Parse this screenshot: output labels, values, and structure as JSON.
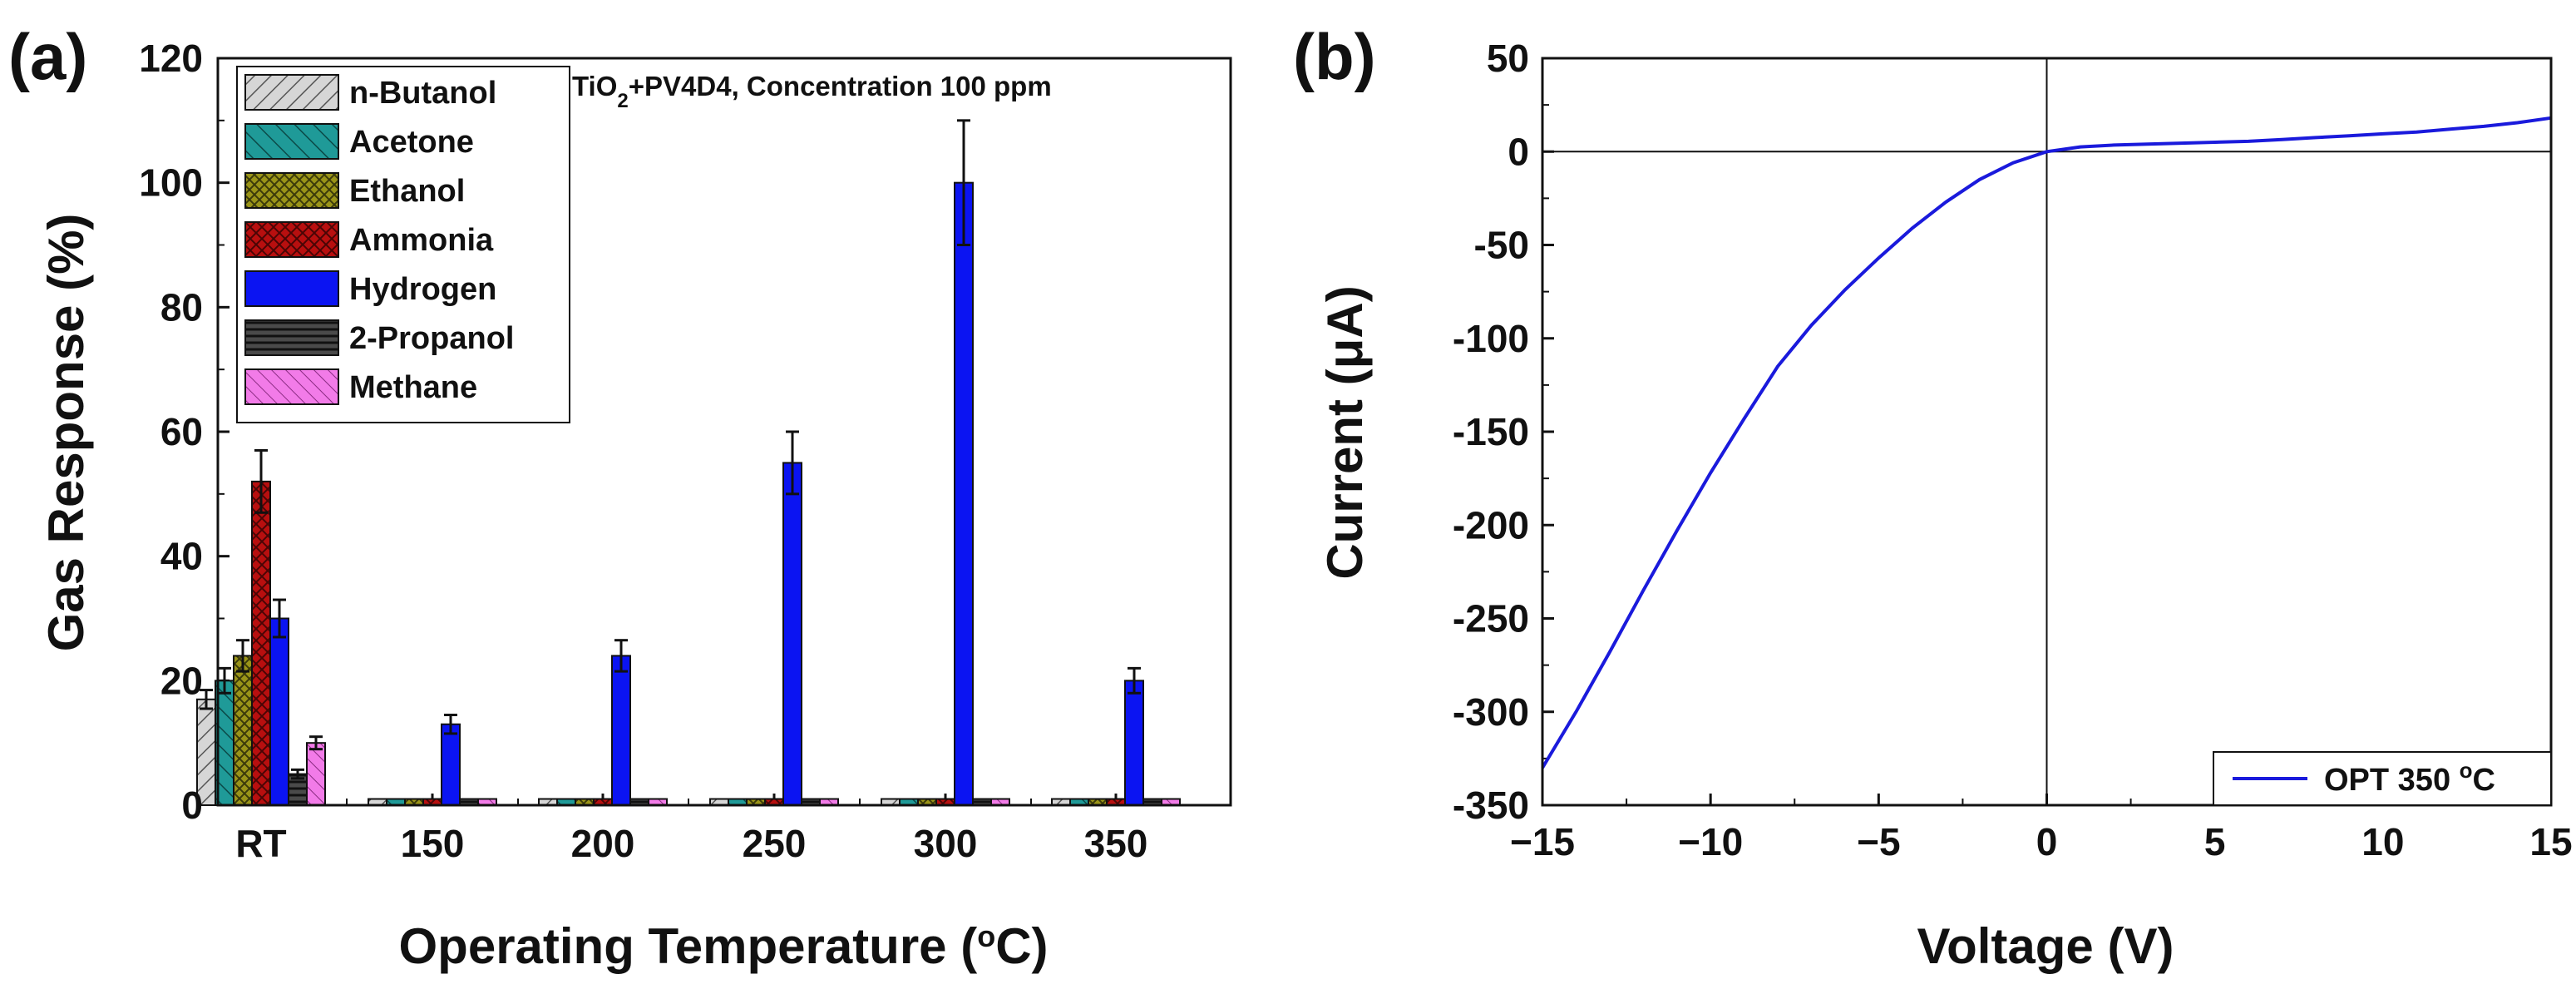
{
  "panels": {
    "a_label": "(a)",
    "b_label": "(b)"
  },
  "colors": {
    "n-Butanol": "#d6d6d6",
    "Acetone": "#1f9a98",
    "Ethanol": "#9a9418",
    "Ammonia": "#b80f0f",
    "Hydrogen": "#0b14f2",
    "2-Propanol": "#4a4a4a",
    "Methane": "#f27be8",
    "curve": "#1a1adc"
  },
  "chart_data": [
    {
      "type": "bar",
      "title": "TiO2+PV4D4, Concentration 100 ppm",
      "annotation": {
        "prefix": "TiO",
        "sub": "2",
        "suffix": "+PV4D4, Concentration 100 ppm"
      },
      "xlabel": {
        "prefix": "Operating Temperature (",
        "sup": "o",
        "suffix": "C)"
      },
      "ylabel": "Gas Response (%)",
      "ylim": [
        0,
        120
      ],
      "yticks": [
        "0",
        "20",
        "40",
        "60",
        "80",
        "100",
        "120"
      ],
      "categories": [
        "RT",
        "150",
        "200",
        "250",
        "300",
        "350"
      ],
      "legend_position": "top-left",
      "series": [
        {
          "name": "n-Butanol",
          "values": [
            17,
            1,
            1,
            1,
            1,
            1
          ],
          "errors": [
            1.5,
            0,
            0,
            0,
            0,
            0
          ]
        },
        {
          "name": "Acetone",
          "values": [
            20,
            1,
            1,
            1,
            1,
            1
          ],
          "errors": [
            2,
            0,
            0,
            0,
            0,
            0
          ]
        },
        {
          "name": "Ethanol",
          "values": [
            24,
            1,
            1,
            1,
            1,
            1
          ],
          "errors": [
            2.5,
            0,
            0,
            0,
            0,
            0
          ]
        },
        {
          "name": "Ammonia",
          "values": [
            52,
            1,
            1,
            1,
            1,
            1
          ],
          "errors": [
            5,
            0,
            0,
            0,
            0,
            0
          ]
        },
        {
          "name": "Hydrogen",
          "values": [
            30,
            13,
            24,
            55,
            100,
            20
          ],
          "errors": [
            3,
            1.5,
            2.5,
            5,
            10,
            2
          ]
        },
        {
          "name": "2-Propanol",
          "values": [
            5,
            1,
            1,
            1,
            1,
            1
          ],
          "errors": [
            0.7,
            0,
            0,
            0,
            0,
            0
          ]
        },
        {
          "name": "Methane",
          "values": [
            10,
            1,
            1,
            1,
            1,
            1
          ],
          "errors": [
            1,
            0,
            0,
            0,
            0,
            0
          ]
        }
      ]
    },
    {
      "type": "line",
      "xlabel": "Voltage (V)",
      "ylabel": "Current (μA)",
      "xlim": [
        -15,
        15
      ],
      "ylim": [
        -350,
        50
      ],
      "xticks": [
        "−15",
        "−10",
        "−5",
        "0",
        "5",
        "10",
        "15"
      ],
      "yticks": [
        "50",
        "0",
        "-50",
        "-100",
        "-150",
        "-200",
        "-250",
        "-300",
        "-350"
      ],
      "legend_position": "bottom-right",
      "legend": {
        "prefix": "OPT 350 ",
        "sup": "o",
        "suffix": "C"
      },
      "series": [
        {
          "name": "OPT 350 °C",
          "x": [
            -15,
            -14,
            -13,
            -12,
            -11,
            -10,
            -9,
            -8,
            -7,
            -6,
            -5,
            -4,
            -3,
            -2,
            -1,
            0,
            1,
            2,
            3,
            4,
            5,
            6,
            7,
            8,
            9,
            10,
            11,
            12,
            13,
            14,
            15
          ],
          "y": [
            -330,
            -300,
            -268,
            -235,
            -203,
            -172,
            -143,
            -115,
            -93,
            -74,
            -57,
            -41,
            -27,
            -15,
            -6,
            0,
            2.5,
            3.5,
            4,
            4.5,
            5,
            5.5,
            6.5,
            7.5,
            8.5,
            9.5,
            10.5,
            12,
            13.5,
            15.5,
            18
          ]
        }
      ]
    }
  ]
}
